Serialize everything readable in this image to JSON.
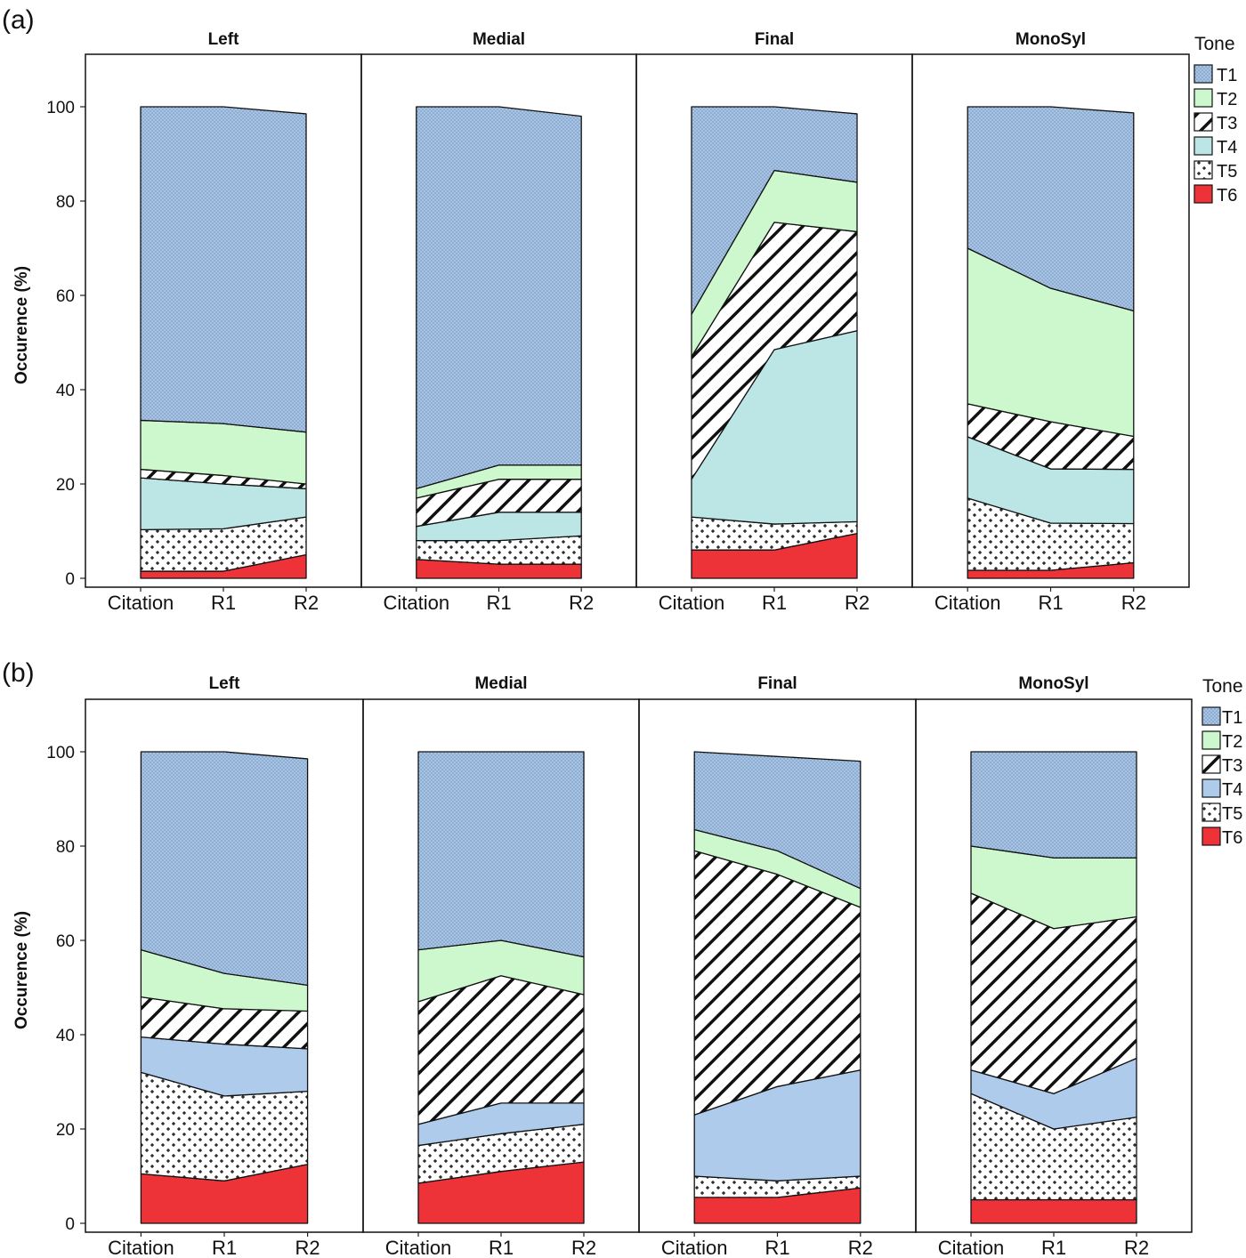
{
  "chart_data": [
    {
      "type": "area",
      "subtype": "stacked-area-facets",
      "panel_label": "(a)",
      "ylabel": "Occurence (%)",
      "ylim": [
        0,
        110
      ],
      "yticks": [
        0,
        20,
        40,
        60,
        80,
        100
      ],
      "categories": [
        "Citation",
        "R1",
        "R2"
      ],
      "legend": {
        "title": "Tone",
        "placement": "right",
        "items": [
          {
            "name": "T1",
            "color": "#a7c4e4",
            "pattern": "dots"
          },
          {
            "name": "T2",
            "color": "#cdf7cd",
            "pattern": "solid"
          },
          {
            "name": "T3",
            "color": "#ffffff",
            "pattern": "hatch"
          },
          {
            "name": "T4",
            "color": "#bce6e6",
            "pattern": "solid"
          },
          {
            "name": "T5",
            "color": "#ffffff",
            "pattern": "crosses"
          },
          {
            "name": "T6",
            "color": "#ee3338",
            "pattern": "solid"
          }
        ]
      },
      "facets": [
        {
          "title": "Left",
          "series": [
            {
              "name": "T6",
              "values": [
                1.5,
                1.5,
                5
              ]
            },
            {
              "name": "T5",
              "values": [
                8.8,
                9,
                8
              ]
            },
            {
              "name": "T4",
              "values": [
                11,
                9.5,
                6
              ]
            },
            {
              "name": "T3",
              "values": [
                1.8,
                1.8,
                1
              ]
            },
            {
              "name": "T2",
              "values": [
                10.4,
                11,
                11
              ]
            },
            {
              "name": "T1",
              "values": [
                66.5,
                67.2,
                67.5
              ]
            }
          ]
        },
        {
          "title": "Medial",
          "series": [
            {
              "name": "T6",
              "values": [
                4,
                3,
                3
              ]
            },
            {
              "name": "T5",
              "values": [
                4,
                5,
                6
              ]
            },
            {
              "name": "T4",
              "values": [
                3,
                6,
                5
              ]
            },
            {
              "name": "T3",
              "values": [
                6,
                7,
                7
              ]
            },
            {
              "name": "T2",
              "values": [
                2,
                3,
                3
              ]
            },
            {
              "name": "T1",
              "values": [
                81,
                76,
                74
              ]
            }
          ]
        },
        {
          "title": "Final",
          "series": [
            {
              "name": "T6",
              "values": [
                6,
                6,
                9.5
              ]
            },
            {
              "name": "T5",
              "values": [
                7,
                5.5,
                2.5
              ]
            },
            {
              "name": "T4",
              "values": [
                8,
                37,
                40.5
              ]
            },
            {
              "name": "T3",
              "values": [
                26,
                27,
                21
              ]
            },
            {
              "name": "T2",
              "values": [
                9,
                11,
                10.5
              ]
            },
            {
              "name": "T1",
              "values": [
                44,
                13.5,
                14.5
              ]
            }
          ]
        },
        {
          "title": "MonoSyl",
          "series": [
            {
              "name": "T6",
              "values": [
                1.7,
                1.7,
                3.3
              ]
            },
            {
              "name": "T5",
              "values": [
                15.3,
                10,
                8.3
              ]
            },
            {
              "name": "T4",
              "values": [
                13,
                11.5,
                11.5
              ]
            },
            {
              "name": "T3",
              "values": [
                7,
                10,
                7
              ]
            },
            {
              "name": "T2",
              "values": [
                33,
                28.3,
                26.6
              ]
            },
            {
              "name": "T1",
              "values": [
                30,
                38.5,
                42
              ]
            }
          ]
        }
      ]
    },
    {
      "type": "area",
      "subtype": "stacked-area-facets",
      "panel_label": "(b)",
      "ylabel": "Occurence (%)",
      "ylim": [
        0,
        110
      ],
      "yticks": [
        0,
        20,
        40,
        60,
        80,
        100
      ],
      "categories": [
        "Citation",
        "R1",
        "R2"
      ],
      "legend": {
        "title": "Tone",
        "placement": "right",
        "items": [
          {
            "name": "T1",
            "color": "#a7c4e4",
            "pattern": "dots"
          },
          {
            "name": "T2",
            "color": "#cdf7cd",
            "pattern": "solid"
          },
          {
            "name": "T3",
            "color": "#ffffff",
            "pattern": "hatch"
          },
          {
            "name": "T4",
            "color": "#aecbec",
            "pattern": "solid"
          },
          {
            "name": "T5",
            "color": "#ffffff",
            "pattern": "crosses"
          },
          {
            "name": "T6",
            "color": "#ee3338",
            "pattern": "solid"
          }
        ]
      },
      "facets": [
        {
          "title": "Left",
          "series": [
            {
              "name": "T6",
              "values": [
                10.5,
                9,
                12.5
              ]
            },
            {
              "name": "T5",
              "values": [
                21.5,
                18,
                15.5
              ]
            },
            {
              "name": "T4",
              "values": [
                7.5,
                11,
                9
              ]
            },
            {
              "name": "T3",
              "values": [
                8.5,
                7.5,
                8
              ]
            },
            {
              "name": "T2",
              "values": [
                10,
                7.5,
                5.5
              ]
            },
            {
              "name": "T1",
              "values": [
                42,
                47,
                48
              ]
            }
          ]
        },
        {
          "title": "Medial",
          "series": [
            {
              "name": "T6",
              "values": [
                8.5,
                11,
                13
              ]
            },
            {
              "name": "T5",
              "values": [
                8,
                8,
                8
              ]
            },
            {
              "name": "T4",
              "values": [
                4.5,
                6.5,
                4.5
              ]
            },
            {
              "name": "T3",
              "values": [
                26,
                27,
                23
              ]
            },
            {
              "name": "T2",
              "values": [
                11,
                7.5,
                8
              ]
            },
            {
              "name": "T1",
              "values": [
                42,
                40,
                43.5
              ]
            }
          ]
        },
        {
          "title": "Final",
          "series": [
            {
              "name": "T6",
              "values": [
                5.5,
                5.5,
                7.5
              ]
            },
            {
              "name": "T5",
              "values": [
                4.5,
                3.5,
                2.5
              ]
            },
            {
              "name": "T4",
              "values": [
                13,
                20,
                22.5
              ]
            },
            {
              "name": "T3",
              "values": [
                56,
                45,
                34.5
              ]
            },
            {
              "name": "T2",
              "values": [
                4.5,
                5,
                4
              ]
            },
            {
              "name": "T1",
              "values": [
                16.5,
                20,
                27
              ]
            }
          ]
        },
        {
          "title": "MonoSyl",
          "series": [
            {
              "name": "T6",
              "values": [
                5,
                5,
                5
              ]
            },
            {
              "name": "T5",
              "values": [
                22.5,
                15,
                17.5
              ]
            },
            {
              "name": "T4",
              "values": [
                5,
                7.5,
                12.5
              ]
            },
            {
              "name": "T3",
              "values": [
                37.5,
                35,
                30
              ]
            },
            {
              "name": "T2",
              "values": [
                10,
                15,
                12.5
              ]
            },
            {
              "name": "T1",
              "values": [
                20,
                22.5,
                22.5
              ]
            }
          ]
        }
      ]
    }
  ]
}
